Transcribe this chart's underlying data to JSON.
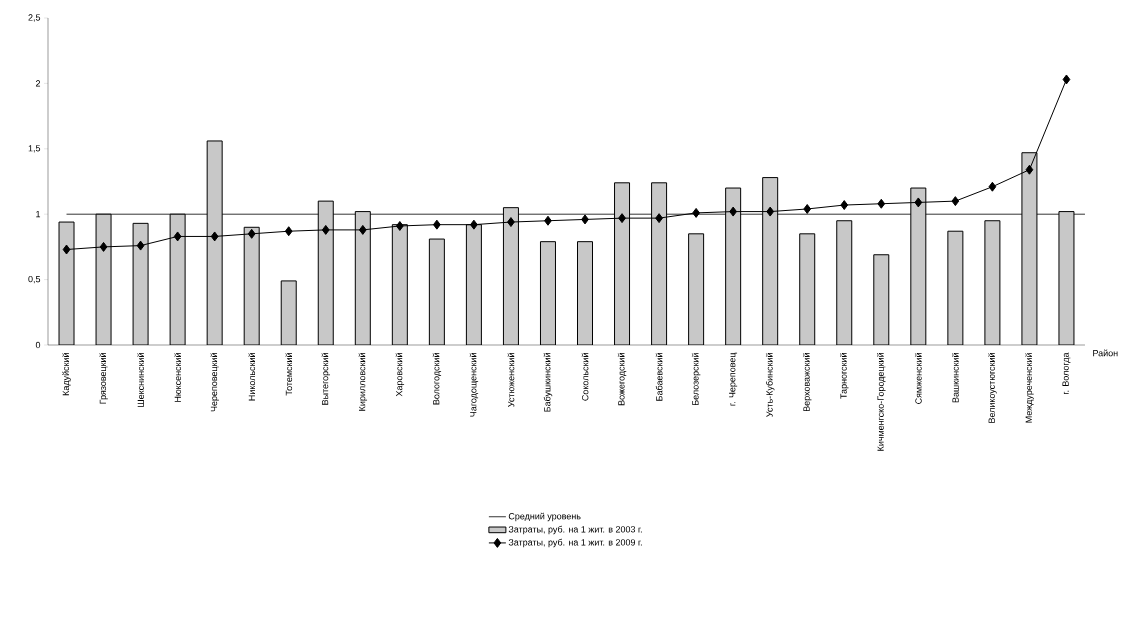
{
  "chart_data": {
    "type": "bar",
    "xlabel": "Район",
    "categories": [
      "Кадуйский",
      "Грязовецкий",
      "Шекснинский",
      "Нюксенский",
      "Череповецкий",
      "Никольский",
      "Тотемский",
      "Вытегорский",
      "Кирилловский",
      "Харовский",
      "Вологодский",
      "Чагодощенский",
      "Устюженский",
      "Бабушкинский",
      "Сокольский",
      "Вожегодский",
      "Бабаевский",
      "Белозерский",
      "г. Череповец",
      "Усть-Кубинский",
      "Верховажский",
      "Тарногский",
      "Кичменгско-Городецкий",
      "Сямженский",
      "Вашкинский",
      "Великоустюгский",
      "Междуреченский",
      "г. Вологда"
    ],
    "series": [
      {
        "name": "Затраты, руб. на 1 жит. в 2003 г.",
        "color": "#c8c8c8",
        "values": [
          0.94,
          1.0,
          0.93,
          1.0,
          1.56,
          0.9,
          0.49,
          1.1,
          1.02,
          0.92,
          0.81,
          0.92,
          1.05,
          0.79,
          0.79,
          1.24,
          1.24,
          0.85,
          1.2,
          1.28,
          0.85,
          0.95,
          0.69,
          1.2,
          0.87,
          0.95,
          1.47,
          1.02
        ]
      },
      {
        "name": "Затраты, руб. на 1 жит. в 2009 г.",
        "type": "line",
        "color": "#000000",
        "marker": "diamond",
        "values": [
          0.73,
          0.75,
          0.76,
          0.83,
          0.83,
          0.85,
          0.87,
          0.88,
          0.88,
          0.91,
          0.92,
          0.92,
          0.94,
          0.95,
          0.96,
          0.97,
          0.97,
          1.01,
          1.02,
          1.02,
          1.04,
          1.07,
          1.08,
          1.09,
          1.1,
          1.21,
          1.34,
          2.03
        ]
      }
    ],
    "ref_lines": [
      {
        "axis": "y",
        "value": 1,
        "label": "Средний уровень",
        "color": "#000000",
        "line_style": "solid"
      }
    ],
    "ylim": [
      0,
      2.5
    ],
    "yticks": [
      0,
      {
        "value": 0.5,
        "label": "0,5"
      },
      1,
      {
        "value": 1.5,
        "label": "1,5"
      },
      2,
      {
        "value": 2.5,
        "label": "2,5"
      }
    ],
    "grid": false,
    "legend": "bottom"
  }
}
